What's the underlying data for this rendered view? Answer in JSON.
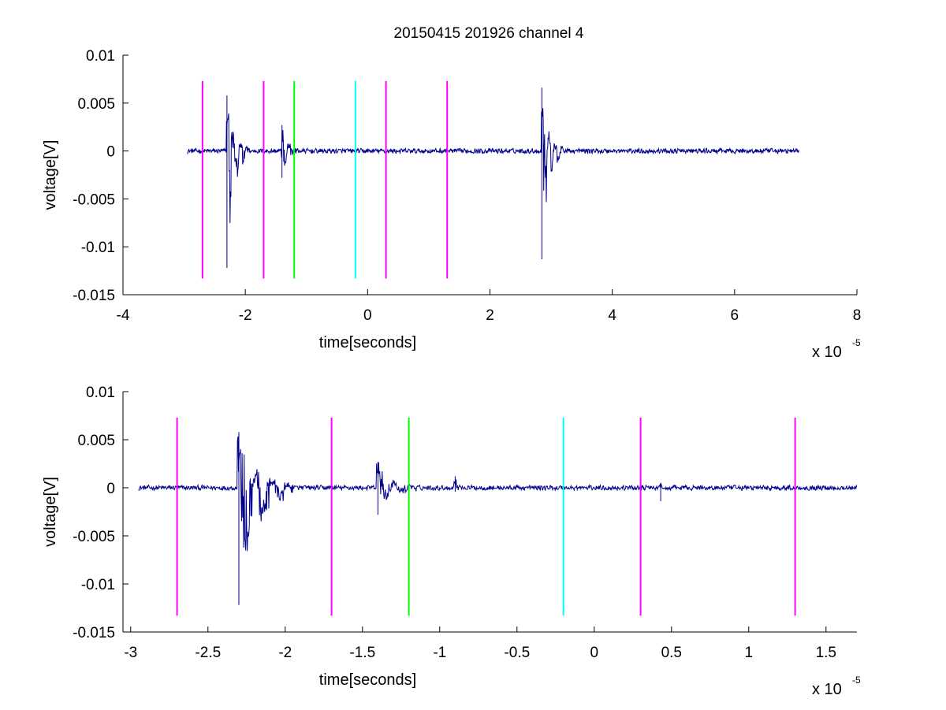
{
  "figure": {
    "title": "20150415 201926 channel 4"
  },
  "chart_data": [
    {
      "type": "line",
      "title": "20150415 201926 channel 4",
      "xlabel": "time[seconds]",
      "ylabel": "voltage[V]",
      "x_exponent_label": "x 10",
      "x_exponent_power": "-5",
      "xlim": [
        -4,
        8
      ],
      "ylim": [
        -0.015,
        0.01
      ],
      "xticks": [
        -4,
        -2,
        0,
        2,
        4,
        6,
        8
      ],
      "xtick_labels": [
        "-4",
        "-2",
        "0",
        "2",
        "4",
        "6",
        "8"
      ],
      "yticks": [
        -0.015,
        -0.01,
        -0.005,
        0,
        0.005,
        0.01
      ],
      "ytick_labels": [
        "-0.015",
        "-0.01",
        "-0.005",
        "0",
        "0.005",
        "0.01"
      ],
      "grid": false,
      "marker_lines": {
        "y_range": [
          -0.0133,
          0.0073
        ],
        "lines": [
          {
            "x": -2.7,
            "color": "#ff00ff"
          },
          {
            "x": -1.7,
            "color": "#ff00ff"
          },
          {
            "x": -1.2,
            "color": "#00ff00"
          },
          {
            "x": -0.2,
            "color": "#00ffff"
          },
          {
            "x": 0.3,
            "color": "#ff00ff"
          },
          {
            "x": 1.3,
            "color": "#ff00ff"
          }
        ]
      },
      "series": [
        {
          "color": "#00008b",
          "x_range": [
            -2.95,
            7.05
          ],
          "baseline": 0,
          "noise_amplitude": 0.0004,
          "bursts": [
            {
              "t": -2.3,
              "max": 0.0058,
              "min": -0.0122,
              "duration": 0.35
            },
            {
              "t": -1.4,
              "max": 0.0027,
              "min": -0.0028,
              "duration": 0.25
            },
            {
              "t": 2.85,
              "max": 0.0066,
              "min": -0.0113,
              "duration": 0.35
            }
          ]
        }
      ]
    },
    {
      "type": "line",
      "title": "",
      "xlabel": "time[seconds]",
      "ylabel": "voltage[V]",
      "x_exponent_label": "x 10",
      "x_exponent_power": "-5",
      "xlim": [
        -3.05,
        1.7
      ],
      "ylim": [
        -0.015,
        0.01
      ],
      "xticks": [
        -3,
        -2.5,
        -2,
        -1.5,
        -1,
        -0.5,
        0,
        0.5,
        1,
        1.5
      ],
      "xtick_labels": [
        "-3",
        "-2.5",
        "-2",
        "-1.5",
        "-1",
        "-0.5",
        "0",
        "0.5",
        "1",
        "1.5"
      ],
      "yticks": [
        -0.015,
        -0.01,
        -0.005,
        0,
        0.005,
        0.01
      ],
      "ytick_labels": [
        "-0.015",
        "-0.01",
        "-0.005",
        "0",
        "0.005",
        "0.01"
      ],
      "grid": false,
      "marker_lines": {
        "y_range": [
          -0.0133,
          0.0073
        ],
        "lines": [
          {
            "x": -2.7,
            "color": "#ff00ff"
          },
          {
            "x": -1.7,
            "color": "#ff00ff"
          },
          {
            "x": -1.2,
            "color": "#00ff00"
          },
          {
            "x": -0.2,
            "color": "#00ffff"
          },
          {
            "x": 0.3,
            "color": "#ff00ff"
          },
          {
            "x": 1.3,
            "color": "#ff00ff"
          }
        ]
      },
      "series": [
        {
          "color": "#00008b",
          "x_range": [
            -2.95,
            1.7
          ],
          "baseline": 0,
          "noise_amplitude": 0.0004,
          "bursts": [
            {
              "t": -2.3,
              "max": 0.0058,
              "min": -0.0122,
              "duration": 0.35
            },
            {
              "t": -1.4,
              "max": 0.0027,
              "min": -0.0028,
              "duration": 0.25
            },
            {
              "t": -0.9,
              "max": 0.0012,
              "min": -0.0004,
              "duration": 0.05
            },
            {
              "t": 0.43,
              "max": 0.0004,
              "min": -0.0014,
              "duration": 0.06
            }
          ]
        }
      ]
    }
  ]
}
